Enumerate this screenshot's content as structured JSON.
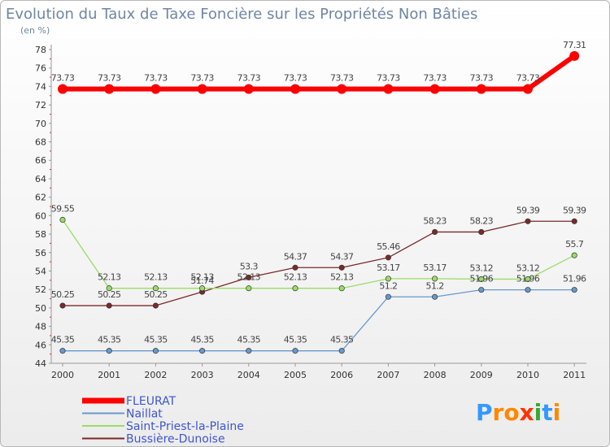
{
  "chart_data": {
    "type": "line",
    "title": "Evolution du Taux de Taxe Foncière sur les Propriétés Non Bâties",
    "subtitle": "(en %)",
    "categories": [
      "2000",
      "2001",
      "2002",
      "2003",
      "2004",
      "2005",
      "2006",
      "2007",
      "2008",
      "2009",
      "2010",
      "2011"
    ],
    "ylim": [
      44,
      78
    ],
    "yticks": [
      44,
      46,
      48,
      50,
      52,
      54,
      56,
      58,
      60,
      62,
      64,
      66,
      68,
      70,
      72,
      74,
      76,
      78
    ],
    "series": [
      {
        "name": "FLEURAT",
        "color": "#ff0000",
        "values": [
          73.73,
          73.73,
          73.73,
          73.73,
          73.73,
          73.73,
          73.73,
          73.73,
          73.73,
          73.73,
          73.73,
          77.31
        ],
        "labels": [
          "73.73",
          "73.73",
          "73.73",
          "73.73",
          "73.73",
          "73.73",
          "73.73",
          "73.73",
          "73.73",
          "73.73",
          "73.73",
          "77.31"
        ]
      },
      {
        "name": "Naillat",
        "color": "#6699cc",
        "values": [
          45.35,
          45.35,
          45.35,
          45.35,
          45.35,
          45.35,
          45.35,
          51.2,
          51.2,
          51.96,
          51.96,
          51.96
        ],
        "labels": [
          "45.35",
          "45.35",
          "45.35",
          "45.35",
          "45.35",
          "45.35",
          "45.35",
          "51.2",
          "51.2",
          "51.96",
          "51.96",
          "51.96"
        ]
      },
      {
        "name": "Saint-Priest-la-Plaine",
        "color": "#99dd66",
        "values": [
          59.55,
          52.13,
          52.13,
          52.13,
          52.13,
          52.13,
          52.13,
          53.17,
          53.17,
          53.12,
          53.12,
          55.7
        ],
        "labels": [
          "59.55",
          "52.13",
          "52.13",
          "52.13",
          "52.13",
          "52.13",
          "52.13",
          "53.17",
          "53.17",
          "53.12",
          "53.12",
          "55.7"
        ]
      },
      {
        "name": "Bussière-Dunoise",
        "color": "#7a2a2a",
        "values": [
          50.25,
          50.25,
          50.25,
          51.74,
          53.3,
          54.37,
          54.37,
          55.46,
          58.23,
          58.23,
          59.39,
          59.39
        ],
        "labels": [
          "50.25",
          "50.25",
          "50.25",
          "51.74",
          "53.3",
          "54.37",
          "54.37",
          "55.46",
          "58.23",
          "58.23",
          "59.39",
          "59.39"
        ]
      }
    ],
    "legend_position": "bottom-left",
    "grid": false
  },
  "logo": {
    "text": "Proxiti",
    "letters": [
      "P",
      "r",
      "o",
      "x",
      "i",
      "t",
      "i"
    ],
    "colors": [
      "#3399ff",
      "#ff8800",
      "#ff8800",
      "#ff3300",
      "#33aa33",
      "#3399ff",
      "#ff8800"
    ]
  }
}
